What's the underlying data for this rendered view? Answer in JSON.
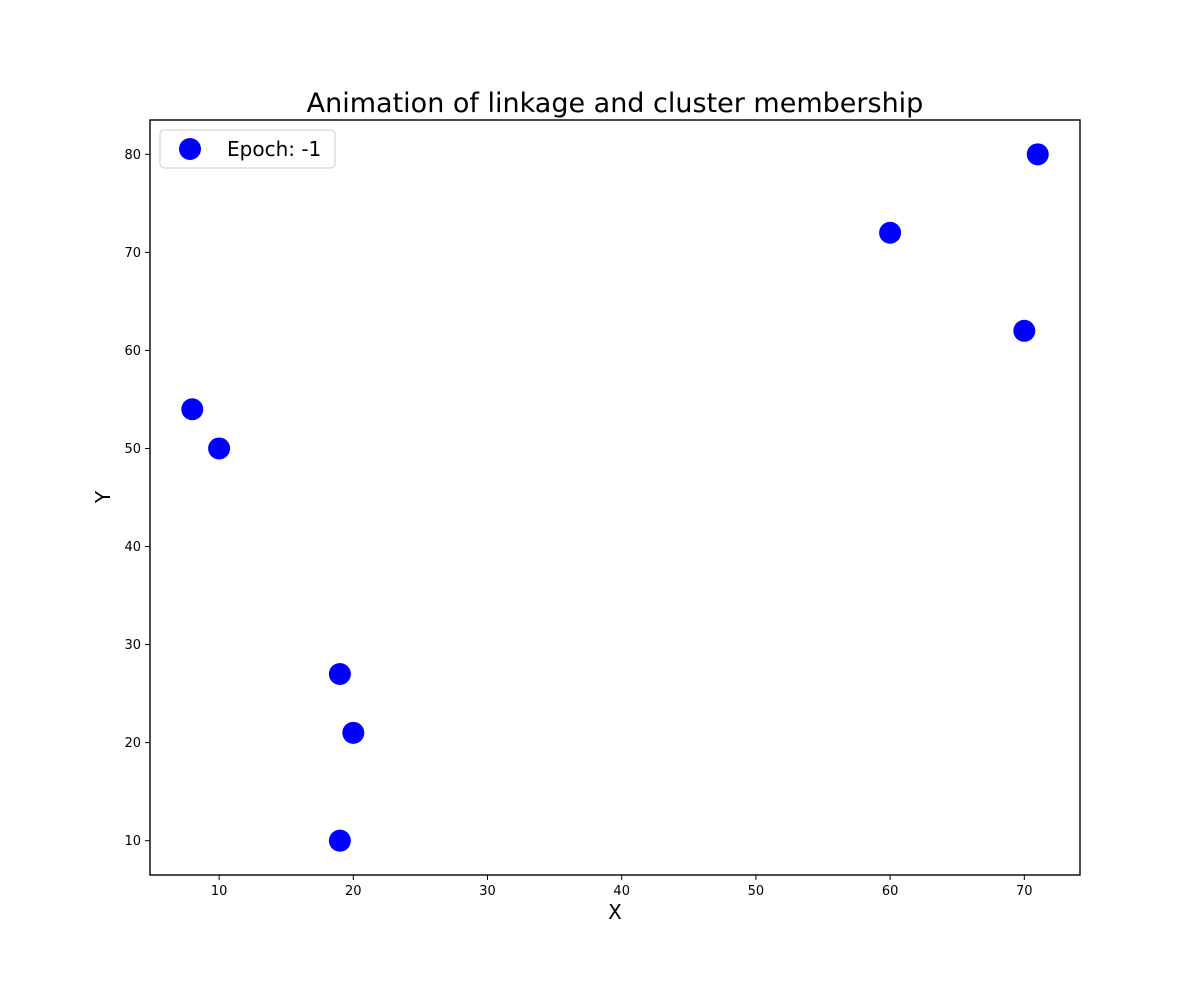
{
  "chart_data": {
    "type": "scatter",
    "title": "Animation of linkage and cluster membership",
    "xlabel": "X",
    "ylabel": "Y",
    "xlim": [
      4.85,
      74.15
    ],
    "ylim": [
      6.5,
      83.5
    ],
    "xticks": [
      10,
      20,
      30,
      40,
      50,
      60,
      70
    ],
    "yticks": [
      10,
      20,
      30,
      40,
      50,
      60,
      70,
      80
    ],
    "grid": false,
    "legend": {
      "position": "upper-left",
      "entries": [
        "Epoch: -1"
      ]
    },
    "series": [
      {
        "name": "Epoch: -1",
        "color": "#0000ff",
        "points": [
          {
            "x": 8,
            "y": 54
          },
          {
            "x": 10,
            "y": 50
          },
          {
            "x": 19,
            "y": 27
          },
          {
            "x": 20,
            "y": 21
          },
          {
            "x": 19,
            "y": 10
          },
          {
            "x": 60,
            "y": 72
          },
          {
            "x": 70,
            "y": 62
          },
          {
            "x": 71,
            "y": 80
          }
        ]
      }
    ]
  }
}
